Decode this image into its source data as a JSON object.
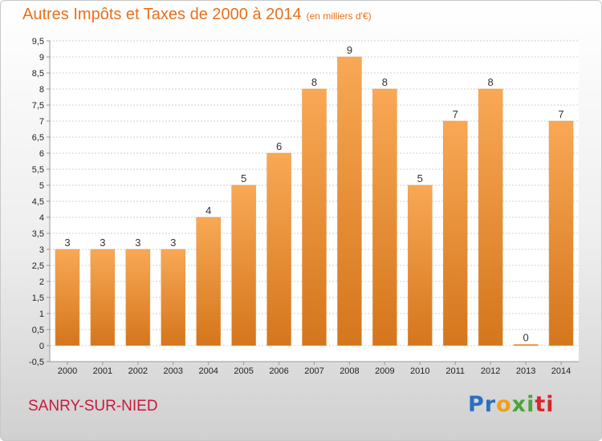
{
  "chart_data": {
    "type": "bar",
    "title": "Autres Impôts et Taxes de 2000 à 2014",
    "unit_note": "(en milliers d'€)",
    "categories": [
      "2000",
      "2001",
      "2002",
      "2003",
      "2004",
      "2005",
      "2006",
      "2007",
      "2008",
      "2009",
      "2010",
      "2011",
      "2012",
      "2013",
      "2014"
    ],
    "values": [
      3,
      3,
      3,
      3,
      4,
      5,
      6,
      8,
      9,
      8,
      5,
      7,
      8,
      0,
      7
    ],
    "data_labels": [
      "3",
      "3",
      "3",
      "3",
      "4",
      "5",
      "6",
      "8",
      "9",
      "8",
      "5",
      "7",
      "8",
      "0",
      "7"
    ],
    "y_ticks": [
      "-0,5",
      "0",
      "0,5",
      "1",
      "1,5",
      "2",
      "2,5",
      "3",
      "3,5",
      "4",
      "4,5",
      "5",
      "5,5",
      "6",
      "6,5",
      "7",
      "7,5",
      "8",
      "8,5",
      "9",
      "9,5"
    ],
    "ylim": [
      -0.5,
      9.5
    ],
    "xlabel": "",
    "ylabel": "",
    "grid": true,
    "colors": {
      "bar_light": "#f9a855",
      "bar_dark": "#d4761c",
      "grid": "#cfcfcf",
      "axis": "#999999"
    }
  },
  "location": "SANRY-SUR-NIED",
  "logo": {
    "part1": "Pr",
    "part2": "o",
    "part3": "xi",
    "part4": "ti"
  }
}
